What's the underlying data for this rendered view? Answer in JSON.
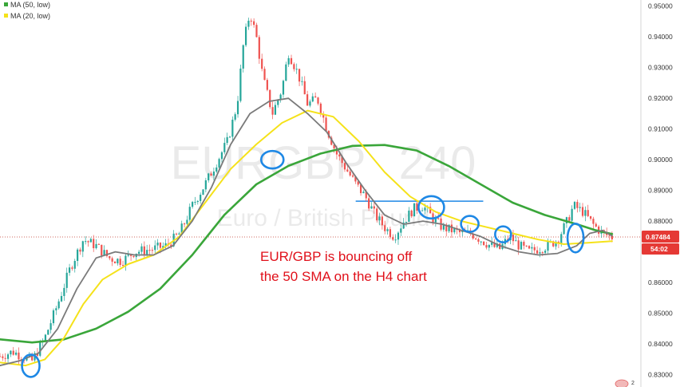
{
  "chart_data": {
    "type": "candlestick",
    "title": "",
    "watermark": {
      "symbol": "EURGBP",
      "interval": "240",
      "description": "Euro / British Pound"
    },
    "legend": [
      {
        "label": "MA (50, low)",
        "color": "#3aa63a"
      },
      {
        "label": "MA (20, low)",
        "color": "#f5e21a"
      }
    ],
    "ylim": [
      0.826,
      0.952
    ],
    "y_ticks": [
      0.83,
      0.84,
      0.85,
      0.86,
      0.87,
      0.88,
      0.89,
      0.9,
      0.91,
      0.92,
      0.93,
      0.94,
      0.95
    ],
    "y_tick_labels": [
      "0.83000",
      "0.84000",
      "0.85000",
      "0.86000",
      "0.87000",
      "0.88000",
      "0.89000",
      "0.90000",
      "0.91000",
      "0.92000",
      "0.93000",
      "0.94000",
      "0.95000"
    ],
    "current_price": 0.87484,
    "current_price_label": "0.87484",
    "countdown_label": "54:02",
    "resistance_level": 0.8865,
    "annotation": [
      "EUR/GBP is bouncing off",
      "the 50 SMA on the H4 chart"
    ],
    "price_path": [
      [
        0,
        0.836
      ],
      [
        0.02,
        0.8375
      ],
      [
        0.05,
        0.8345
      ],
      [
        0.07,
        0.842
      ],
      [
        0.09,
        0.853
      ],
      [
        0.11,
        0.865
      ],
      [
        0.13,
        0.874
      ],
      [
        0.15,
        0.872
      ],
      [
        0.17,
        0.868
      ],
      [
        0.19,
        0.867
      ],
      [
        0.21,
        0.87
      ],
      [
        0.24,
        0.871
      ],
      [
        0.26,
        0.872
      ],
      [
        0.28,
        0.876
      ],
      [
        0.3,
        0.885
      ],
      [
        0.32,
        0.892
      ],
      [
        0.34,
        0.9
      ],
      [
        0.355,
        0.906
      ],
      [
        0.37,
        0.918
      ],
      [
        0.38,
        0.938
      ],
      [
        0.39,
        0.948
      ],
      [
        0.4,
        0.94
      ],
      [
        0.41,
        0.927
      ],
      [
        0.425,
        0.915
      ],
      [
        0.44,
        0.923
      ],
      [
        0.45,
        0.935
      ],
      [
        0.465,
        0.928
      ],
      [
        0.48,
        0.918
      ],
      [
        0.495,
        0.92
      ],
      [
        0.51,
        0.91
      ],
      [
        0.525,
        0.902
      ],
      [
        0.54,
        0.897
      ],
      [
        0.555,
        0.892
      ],
      [
        0.57,
        0.888
      ],
      [
        0.585,
        0.882
      ],
      [
        0.6,
        0.878
      ],
      [
        0.615,
        0.875
      ],
      [
        0.63,
        0.88
      ],
      [
        0.645,
        0.884
      ],
      [
        0.66,
        0.885
      ],
      [
        0.675,
        0.881
      ],
      [
        0.69,
        0.878
      ],
      [
        0.705,
        0.877
      ],
      [
        0.72,
        0.876
      ],
      [
        0.735,
        0.876
      ],
      [
        0.75,
        0.874
      ],
      [
        0.765,
        0.872
      ],
      [
        0.78,
        0.871
      ],
      [
        0.795,
        0.875
      ],
      [
        0.81,
        0.872
      ],
      [
        0.825,
        0.87
      ],
      [
        0.84,
        0.871
      ],
      [
        0.855,
        0.872
      ],
      [
        0.87,
        0.874
      ],
      [
        0.885,
        0.88
      ],
      [
        0.895,
        0.885
      ],
      [
        0.91,
        0.883
      ],
      [
        0.925,
        0.879
      ],
      [
        0.94,
        0.876
      ],
      [
        0.955,
        0.8748
      ]
    ],
    "series": [
      {
        "name": "MA (50, low)",
        "color": "#3aa63a",
        "points": [
          [
            0,
            0.8415
          ],
          [
            0.05,
            0.8405
          ],
          [
            0.1,
            0.8415
          ],
          [
            0.15,
            0.845
          ],
          [
            0.2,
            0.8505
          ],
          [
            0.25,
            0.858
          ],
          [
            0.3,
            0.869
          ],
          [
            0.35,
            0.882
          ],
          [
            0.4,
            0.892
          ],
          [
            0.45,
            0.898
          ],
          [
            0.5,
            0.902
          ],
          [
            0.55,
            0.9045
          ],
          [
            0.6,
            0.9048
          ],
          [
            0.65,
            0.903
          ],
          [
            0.7,
            0.898
          ],
          [
            0.75,
            0.892
          ],
          [
            0.8,
            0.886
          ],
          [
            0.85,
            0.882
          ],
          [
            0.9,
            0.879
          ],
          [
            0.93,
            0.877
          ],
          [
            0.955,
            0.8758
          ]
        ]
      },
      {
        "name": "MA (20, low)",
        "color": "#f5e21a",
        "points": [
          [
            0,
            0.834
          ],
          [
            0.04,
            0.833
          ],
          [
            0.07,
            0.835
          ],
          [
            0.1,
            0.842
          ],
          [
            0.13,
            0.853
          ],
          [
            0.16,
            0.861
          ],
          [
            0.2,
            0.866
          ],
          [
            0.24,
            0.869
          ],
          [
            0.28,
            0.875
          ],
          [
            0.32,
            0.886
          ],
          [
            0.36,
            0.897
          ],
          [
            0.4,
            0.905
          ],
          [
            0.44,
            0.912
          ],
          [
            0.48,
            0.916
          ],
          [
            0.52,
            0.914
          ],
          [
            0.56,
            0.906
          ],
          [
            0.6,
            0.896
          ],
          [
            0.64,
            0.888
          ],
          [
            0.68,
            0.883
          ],
          [
            0.72,
            0.88
          ],
          [
            0.76,
            0.878
          ],
          [
            0.8,
            0.876
          ],
          [
            0.84,
            0.874
          ],
          [
            0.88,
            0.8725
          ],
          [
            0.92,
            0.873
          ],
          [
            0.955,
            0.8735
          ]
        ]
      },
      {
        "name": "",
        "color": "#7a7a7a",
        "points": [
          [
            0,
            0.833
          ],
          [
            0.03,
            0.8345
          ],
          [
            0.06,
            0.837
          ],
          [
            0.09,
            0.845
          ],
          [
            0.12,
            0.858
          ],
          [
            0.15,
            0.868
          ],
          [
            0.18,
            0.87
          ],
          [
            0.21,
            0.869
          ],
          [
            0.24,
            0.869
          ],
          [
            0.27,
            0.872
          ],
          [
            0.3,
            0.88
          ],
          [
            0.33,
            0.891
          ],
          [
            0.36,
            0.905
          ],
          [
            0.39,
            0.915
          ],
          [
            0.42,
            0.919
          ],
          [
            0.45,
            0.92
          ],
          [
            0.48,
            0.915
          ],
          [
            0.51,
            0.909
          ],
          [
            0.54,
            0.899
          ],
          [
            0.57,
            0.89
          ],
          [
            0.6,
            0.882
          ],
          [
            0.63,
            0.879
          ],
          [
            0.66,
            0.88
          ],
          [
            0.69,
            0.879
          ],
          [
            0.72,
            0.877
          ],
          [
            0.75,
            0.875
          ],
          [
            0.78,
            0.872
          ],
          [
            0.81,
            0.87
          ],
          [
            0.84,
            0.869
          ],
          [
            0.87,
            0.8695
          ],
          [
            0.9,
            0.872
          ],
          [
            0.92,
            0.876
          ],
          [
            0.94,
            0.877
          ],
          [
            0.955,
            0.8752
          ]
        ]
      }
    ],
    "highlights": [
      {
        "x": 0.048,
        "y": 0.8329
      },
      {
        "x": 0.425,
        "y": 0.9
      },
      {
        "x": 0.673,
        "y": 0.8845
      },
      {
        "x": 0.733,
        "y": 0.8791
      },
      {
        "x": 0.785,
        "y": 0.8757
      },
      {
        "x": 0.898,
        "y": 0.8745
      }
    ],
    "grid": false
  },
  "badges": {
    "events_count": "2"
  }
}
